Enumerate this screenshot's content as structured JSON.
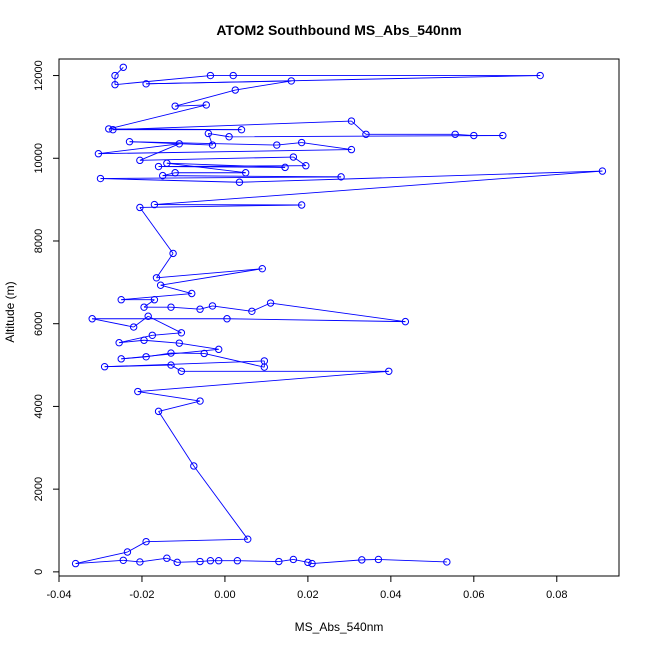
{
  "chart_data": {
    "type": "line",
    "title": "ATOM2 Southbound MS_Abs_540nm",
    "xlabel": "MS_Abs_540nm",
    "ylabel": "Altitude (m)",
    "xlim": [
      -0.04,
      0.095
    ],
    "ylim": [
      -100,
      12400
    ],
    "x_ticks": [
      -0.04,
      -0.02,
      0.0,
      0.02,
      0.04,
      0.06,
      0.08
    ],
    "x_tick_labels": [
      "-0.04",
      "-0.02",
      "0.00",
      "0.02",
      "0.04",
      "0.06",
      "0.08"
    ],
    "y_ticks": [
      0,
      2000,
      4000,
      6000,
      8000,
      10000,
      12000
    ],
    "y_tick_labels": [
      "0",
      "2000",
      "4000",
      "6000",
      "8000",
      "10000",
      "12000"
    ],
    "grid": false,
    "series": [
      {
        "color": "#0000ff",
        "marker": "open-circle",
        "points": [
          {
            "x": -0.0245,
            "y": 12200
          },
          {
            "x": -0.0265,
            "y": 12000
          },
          {
            "x": -0.0265,
            "y": 11780
          },
          {
            "x": -0.0035,
            "y": 12000
          },
          {
            "x": 0.002,
            "y": 12000
          },
          {
            "x": 0.076,
            "y": 12000
          },
          {
            "x": -0.019,
            "y": 11800
          },
          {
            "x": 0.016,
            "y": 11870
          },
          {
            "x": 0.0025,
            "y": 11650
          },
          {
            "x": -0.012,
            "y": 11260
          },
          {
            "x": -0.0045,
            "y": 11290
          },
          {
            "x": -0.028,
            "y": 10710
          },
          {
            "x": 0.004,
            "y": 10690
          },
          {
            "x": -0.027,
            "y": 10690
          },
          {
            "x": 0.0305,
            "y": 10900
          },
          {
            "x": 0.034,
            "y": 10580
          },
          {
            "x": 0.0555,
            "y": 10580
          },
          {
            "x": 0.06,
            "y": 10550
          },
          {
            "x": 0.067,
            "y": 10550
          },
          {
            "x": 0.001,
            "y": 10520
          },
          {
            "x": -0.004,
            "y": 10600
          },
          {
            "x": -0.003,
            "y": 10320
          },
          {
            "x": -0.023,
            "y": 10400
          },
          {
            "x": 0.0125,
            "y": 10320
          },
          {
            "x": 0.0185,
            "y": 10380
          },
          {
            "x": 0.0305,
            "y": 10210
          },
          {
            "x": -0.0305,
            "y": 10110
          },
          {
            "x": -0.011,
            "y": 10350
          },
          {
            "x": -0.0205,
            "y": 9950
          },
          {
            "x": 0.0165,
            "y": 10030
          },
          {
            "x": 0.0195,
            "y": 9820
          },
          {
            "x": -0.016,
            "y": 9800
          },
          {
            "x": 0.0145,
            "y": 9780
          },
          {
            "x": -0.014,
            "y": 9880
          },
          {
            "x": 0.005,
            "y": 9650
          },
          {
            "x": -0.012,
            "y": 9650
          },
          {
            "x": -0.015,
            "y": 9580
          },
          {
            "x": 0.028,
            "y": 9550
          },
          {
            "x": -0.03,
            "y": 9510
          },
          {
            "x": 0.0035,
            "y": 9420
          },
          {
            "x": 0.091,
            "y": 9690
          },
          {
            "x": -0.017,
            "y": 8880
          },
          {
            "x": 0.0185,
            "y": 8870
          },
          {
            "x": -0.0205,
            "y": 8810
          },
          {
            "x": -0.0125,
            "y": 7700
          },
          {
            "x": -0.0165,
            "y": 7110
          },
          {
            "x": 0.009,
            "y": 7330
          },
          {
            "x": -0.0155,
            "y": 6930
          },
          {
            "x": -0.008,
            "y": 6730
          },
          {
            "x": -0.025,
            "y": 6580
          },
          {
            "x": -0.017,
            "y": 6580
          },
          {
            "x": -0.0195,
            "y": 6400
          },
          {
            "x": -0.013,
            "y": 6400
          },
          {
            "x": -0.006,
            "y": 6350
          },
          {
            "x": -0.003,
            "y": 6430
          },
          {
            "x": 0.0065,
            "y": 6300
          },
          {
            "x": 0.011,
            "y": 6500
          },
          {
            "x": 0.0435,
            "y": 6050
          },
          {
            "x": 0.0005,
            "y": 6120
          },
          {
            "x": -0.032,
            "y": 6120
          },
          {
            "x": -0.022,
            "y": 5920
          },
          {
            "x": -0.0185,
            "y": 6180
          },
          {
            "x": -0.0105,
            "y": 5780
          },
          {
            "x": -0.0175,
            "y": 5720
          },
          {
            "x": -0.0255,
            "y": 5540
          },
          {
            "x": -0.0195,
            "y": 5600
          },
          {
            "x": -0.011,
            "y": 5530
          },
          {
            "x": -0.0015,
            "y": 5380
          },
          {
            "x": -0.025,
            "y": 5150
          },
          {
            "x": -0.019,
            "y": 5200
          },
          {
            "x": -0.013,
            "y": 5290
          },
          {
            "x": -0.005,
            "y": 5280
          },
          {
            "x": 0.0095,
            "y": 4950
          },
          {
            "x": 0.0095,
            "y": 5100
          },
          {
            "x": -0.029,
            "y": 4960
          },
          {
            "x": -0.013,
            "y": 5000
          },
          {
            "x": -0.0105,
            "y": 4850
          },
          {
            "x": 0.0395,
            "y": 4850
          },
          {
            "x": -0.021,
            "y": 4360
          },
          {
            "x": -0.006,
            "y": 4130
          },
          {
            "x": -0.016,
            "y": 3880
          },
          {
            "x": -0.0075,
            "y": 2560
          },
          {
            "x": 0.0055,
            "y": 790
          },
          {
            "x": -0.019,
            "y": 730
          },
          {
            "x": -0.0235,
            "y": 480
          },
          {
            "x": -0.036,
            "y": 200
          },
          {
            "x": -0.0245,
            "y": 280
          },
          {
            "x": -0.0205,
            "y": 240
          },
          {
            "x": -0.014,
            "y": 330
          },
          {
            "x": -0.0115,
            "y": 230
          },
          {
            "x": -0.006,
            "y": 250
          },
          {
            "x": -0.0035,
            "y": 270
          },
          {
            "x": -0.0015,
            "y": 270
          },
          {
            "x": 0.003,
            "y": 270
          },
          {
            "x": 0.013,
            "y": 250
          },
          {
            "x": 0.0165,
            "y": 300
          },
          {
            "x": 0.02,
            "y": 230
          },
          {
            "x": 0.021,
            "y": 200
          },
          {
            "x": 0.033,
            "y": 290
          },
          {
            "x": 0.037,
            "y": 300
          },
          {
            "x": 0.0535,
            "y": 240
          }
        ]
      }
    ]
  }
}
